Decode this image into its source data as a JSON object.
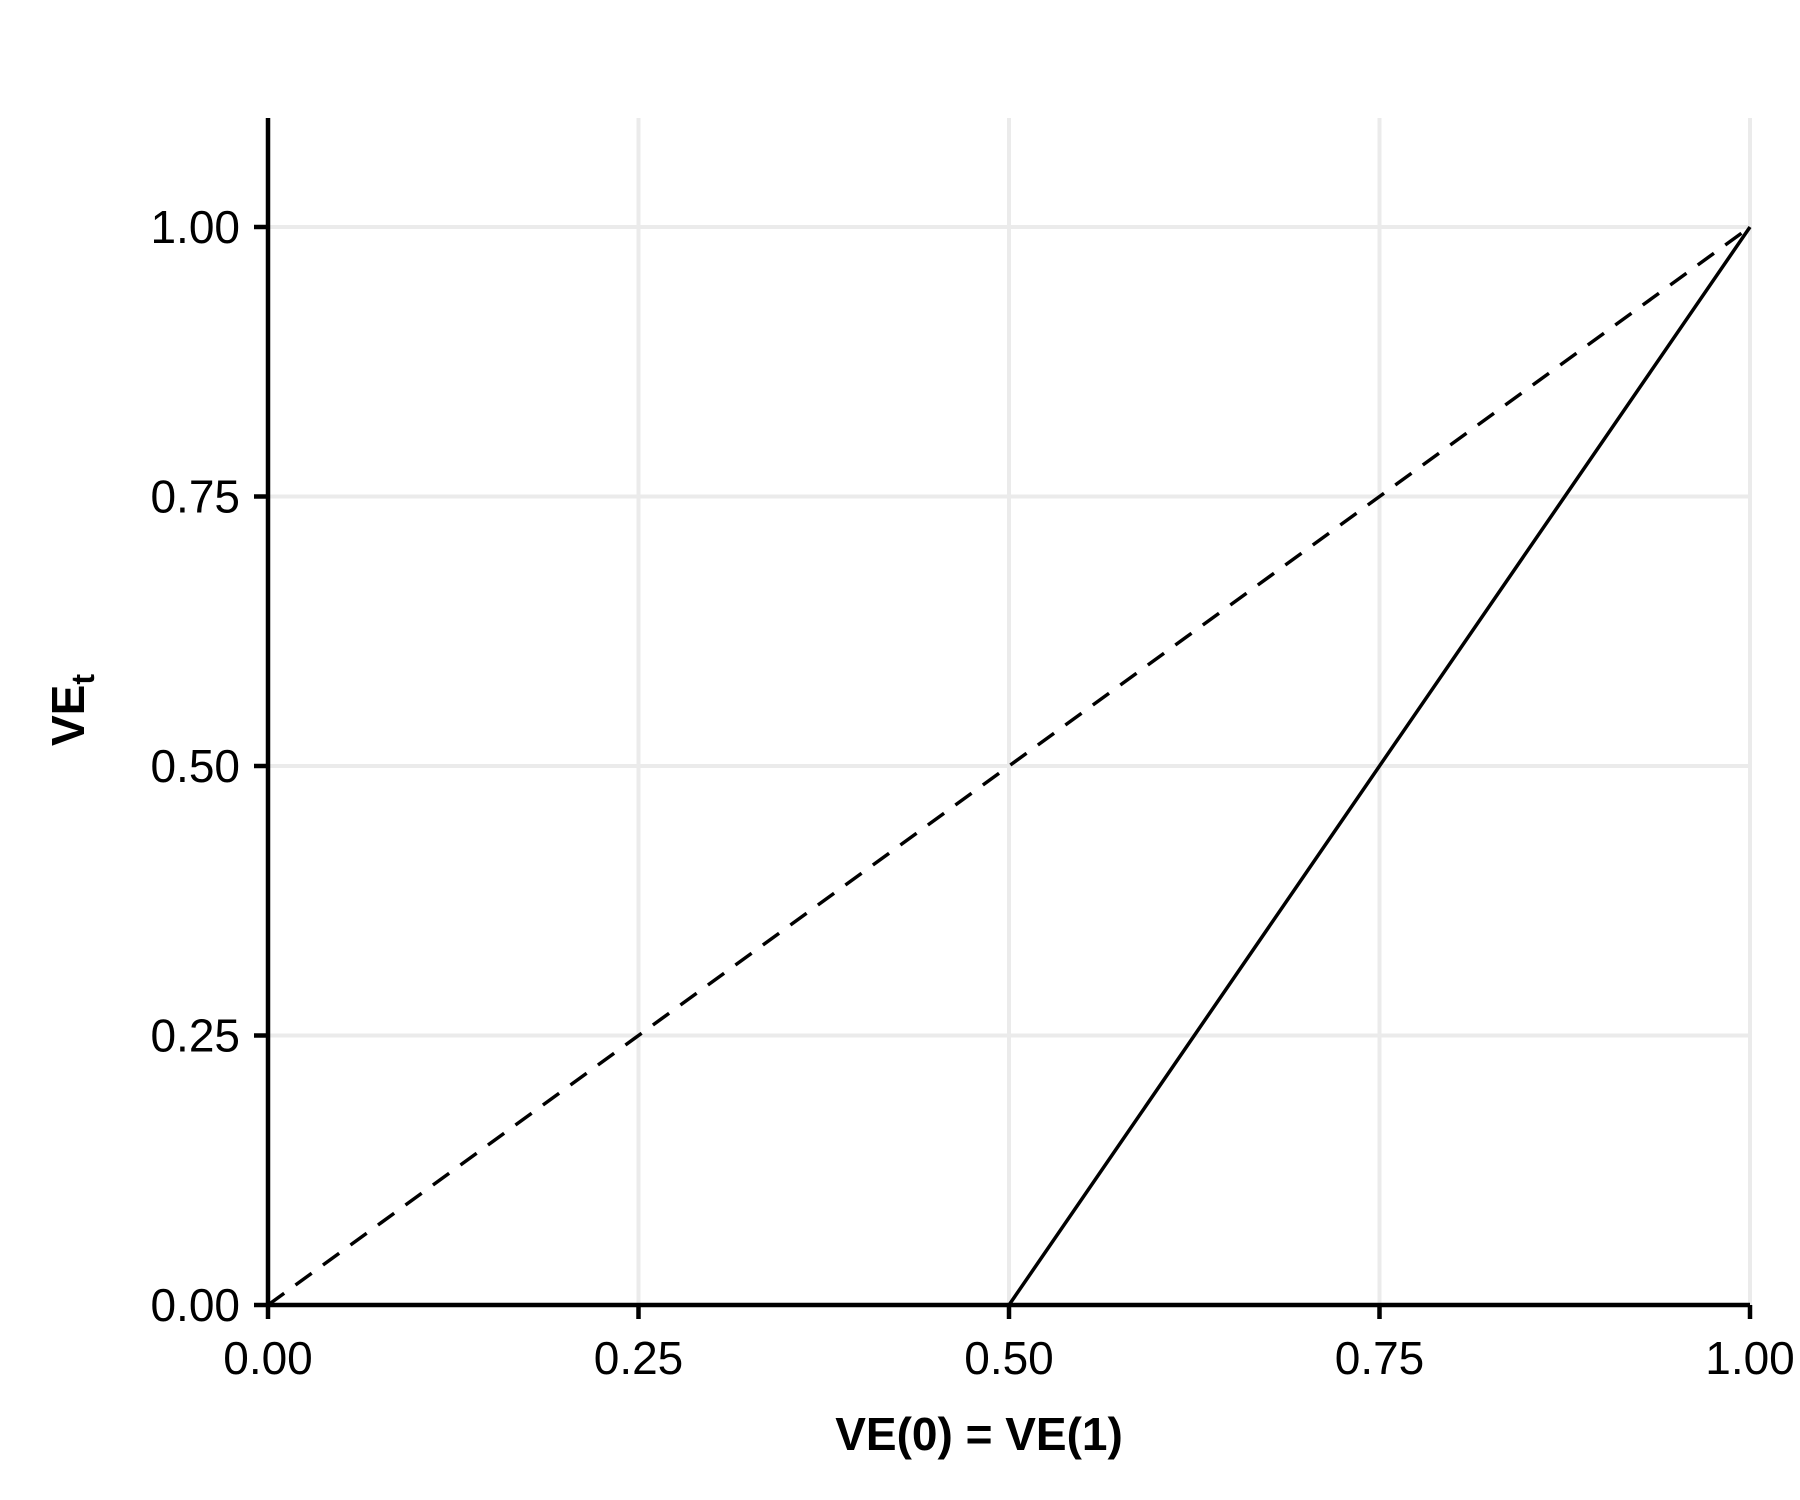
{
  "chart_data": {
    "type": "line",
    "title": "",
    "xlabel": "VE(0) = VE(1)",
    "ylabel": {
      "base": "VE",
      "subscript": "t"
    },
    "xlim": [
      0,
      1
    ],
    "ylim": [
      0,
      1.1
    ],
    "x_ticks": [
      0,
      0.25,
      0.5,
      0.75,
      1
    ],
    "x_tick_labels": [
      "0.00",
      "0.25",
      "0.50",
      "0.75",
      "1.00"
    ],
    "y_ticks": [
      0,
      0.25,
      0.5,
      0.75,
      1
    ],
    "y_tick_labels": [
      "0.00",
      "0.25",
      "0.50",
      "0.75",
      "1.00"
    ],
    "grid": true,
    "legend": "none",
    "colors": {
      "grid": "#ebebeb",
      "axis": "#000000",
      "series": "#000000"
    },
    "series": [
      {
        "style": "dashed",
        "x": [
          0,
          1
        ],
        "y": [
          0,
          1
        ]
      },
      {
        "style": "solid",
        "x": [
          0.5,
          0.625,
          0.75,
          0.875,
          1
        ],
        "y": [
          0,
          0.25,
          0.5,
          0.75,
          1
        ]
      }
    ]
  }
}
